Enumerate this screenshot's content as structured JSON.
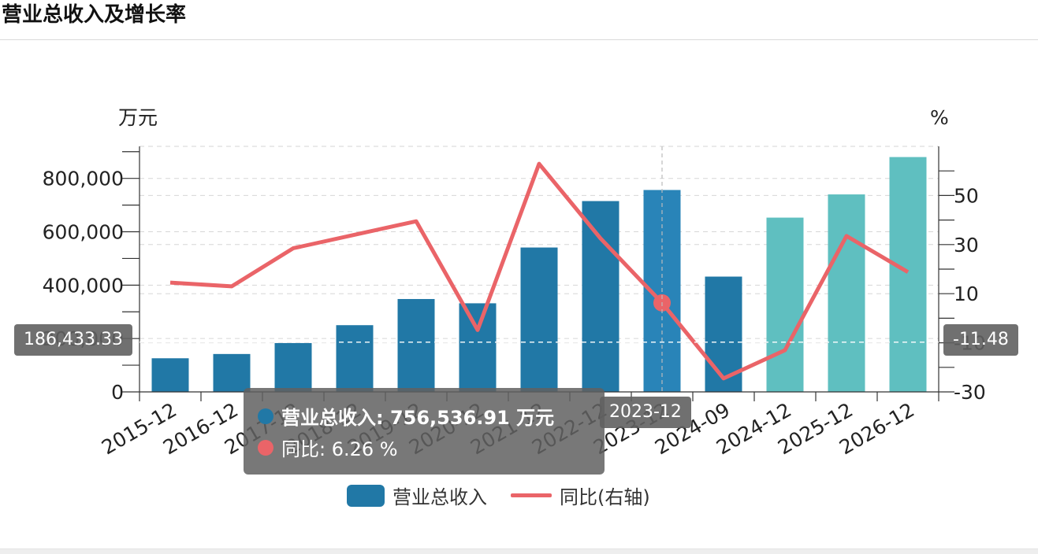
{
  "header": {
    "title": "营业总收入及增长率"
  },
  "chart_data": {
    "type": "bar",
    "categories": [
      "2015-12",
      "2016-12",
      "2017-12",
      "2018-12",
      "2019-12",
      "2020-12",
      "2021-12",
      "2022-12",
      "2023-12",
      "2024-09",
      "2024-12",
      "2025-12",
      "2026-12"
    ],
    "series": [
      {
        "name": "营业总收入",
        "type": "bar",
        "axis": "left",
        "values": [
          126000,
          142000,
          183000,
          250000,
          348000,
          332000,
          541000,
          715000,
          756536.91,
          432000,
          653000,
          740000,
          880000
        ],
        "colors": [
          "#2178a6",
          "#2178a6",
          "#2178a6",
          "#2178a6",
          "#2178a6",
          "#2178a6",
          "#2178a6",
          "#2178a6",
          "#2984b8",
          "#2178a6",
          "#5fbfc0",
          "#5fbfc0",
          "#5fbfc0"
        ]
      },
      {
        "name": "同比(右轴)",
        "type": "line",
        "axis": "right",
        "values": [
          14.5,
          13.0,
          28.5,
          34.0,
          39.5,
          -4.8,
          62.9,
          32.5,
          6.26,
          -24.5,
          -13.0,
          33.5,
          18.8
        ],
        "color": "#ea6468"
      }
    ],
    "y_left": {
      "unit": "万元",
      "ylim": [
        0,
        920000
      ],
      "ticks": [
        0,
        200000,
        400000,
        600000,
        800000
      ],
      "tick_labels": [
        "0",
        "200,000",
        "400,000",
        "600,000",
        "800,000"
      ]
    },
    "y_right": {
      "unit": "%",
      "ylim": [
        -30,
        70
      ],
      "ticks": [
        -30,
        -10,
        10,
        30,
        50
      ],
      "tick_labels": [
        "-30",
        "-10",
        "10",
        "30",
        "50"
      ]
    },
    "grid": true,
    "legend": "bottom-center",
    "highlight_index": 8
  },
  "tooltip": {
    "revenue_label": "营业总收入: 756,536.91  万元",
    "yoy_label": "同比: 6.26  %"
  },
  "axis_pointer": {
    "x_label": "2023-12",
    "y_left_label": "186,433.33",
    "y_right_label": "-11.48"
  },
  "legend": {
    "items": [
      {
        "label": "营业总收入",
        "color": "#2178a6"
      },
      {
        "label": "同比(右轴)",
        "color": "#ea6468"
      }
    ]
  }
}
